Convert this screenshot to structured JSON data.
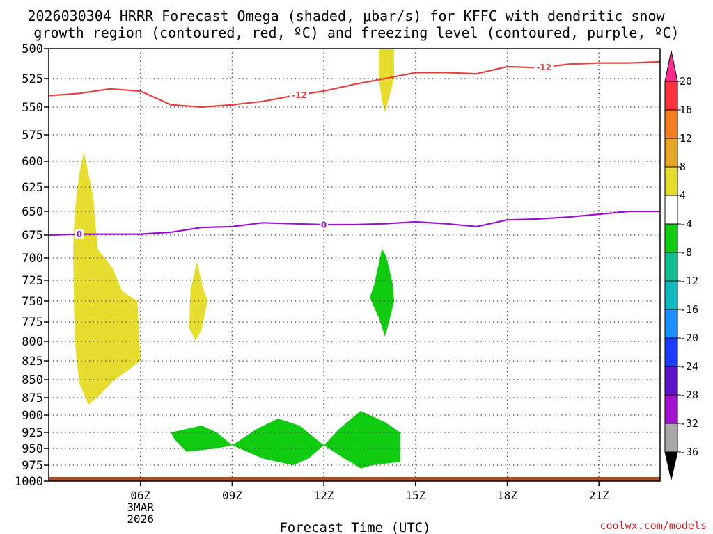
{
  "chart_data": {
    "type": "contour",
    "title_lines": [
      "2026030304 HRRR Forecast Omega (shaded, μbar/s) for KFFC with dendritic snow",
      "growth region (contoured, red, ºC) and freezing level (contoured, purple, ºC)"
    ],
    "xlabel": "Forecast Time (UTC)",
    "credit": "coolwx.com/models",
    "x_start_hour": 3,
    "x_end_hour": 23,
    "x_ticks": [
      {
        "hour": 6,
        "lines": [
          "06Z",
          "3MAR",
          "2026"
        ]
      },
      {
        "hour": 9,
        "lines": [
          "09Z"
        ]
      },
      {
        "hour": 12,
        "lines": [
          "12Z"
        ]
      },
      {
        "hour": 15,
        "lines": [
          "15Z"
        ]
      },
      {
        "hour": 18,
        "lines": [
          "18Z"
        ]
      },
      {
        "hour": 21,
        "lines": [
          "21Z"
        ]
      }
    ],
    "ylim": [
      500,
      1000
    ],
    "y_ticks": [
      {
        "p": 500,
        "y": 70
      },
      {
        "p": 525,
        "y": 113
      },
      {
        "p": 550,
        "y": 154
      },
      {
        "p": 575,
        "y": 194
      },
      {
        "p": 600,
        "y": 232
      },
      {
        "p": 625,
        "y": 269
      },
      {
        "p": 650,
        "y": 304
      },
      {
        "p": 675,
        "y": 338
      },
      {
        "p": 700,
        "y": 371
      },
      {
        "p": 725,
        "y": 403
      },
      {
        "p": 750,
        "y": 433
      },
      {
        "p": 775,
        "y": 463
      },
      {
        "p": 800,
        "y": 491
      },
      {
        "p": 825,
        "y": 519
      },
      {
        "p": 850,
        "y": 546
      },
      {
        "p": 875,
        "y": 572
      },
      {
        "p": 900,
        "y": 597
      },
      {
        "p": 925,
        "y": 622
      },
      {
        "p": 950,
        "y": 645
      },
      {
        "p": 975,
        "y": 669
      },
      {
        "p": 1000,
        "y": 692
      }
    ],
    "contours": [
      {
        "name": "-12",
        "color": "#e8413c",
        "points": [
          [
            3,
            540
          ],
          [
            4,
            538
          ],
          [
            5,
            534
          ],
          [
            6,
            536
          ],
          [
            7,
            548
          ],
          [
            8,
            550
          ],
          [
            9,
            548
          ],
          [
            10,
            545
          ],
          [
            11,
            540
          ],
          [
            12,
            536
          ],
          [
            13,
            530
          ],
          [
            14,
            525
          ],
          [
            15,
            520
          ],
          [
            16,
            520
          ],
          [
            17,
            521
          ],
          [
            18,
            515
          ],
          [
            19,
            516
          ],
          [
            20,
            513
          ],
          [
            21,
            512
          ],
          [
            22,
            512
          ],
          [
            23,
            511
          ]
        ],
        "labels": [
          [
            11.2,
            "-12"
          ],
          [
            19.2,
            "-12"
          ]
        ]
      },
      {
        "name": "0",
        "color": "#9b10d0",
        "points": [
          [
            3,
            675
          ],
          [
            4,
            674
          ],
          [
            5,
            674
          ],
          [
            6,
            674
          ],
          [
            7,
            672
          ],
          [
            8,
            667
          ],
          [
            9,
            666
          ],
          [
            10,
            662
          ],
          [
            11,
            663
          ],
          [
            12,
            664
          ],
          [
            13,
            664
          ],
          [
            14,
            663
          ],
          [
            15,
            661
          ],
          [
            16,
            663
          ],
          [
            17,
            666
          ],
          [
            18,
            659
          ],
          [
            19,
            658
          ],
          [
            20,
            656
          ],
          [
            21,
            653
          ],
          [
            22,
            650
          ],
          [
            23,
            650
          ]
        ],
        "labels": [
          [
            4.0,
            "0"
          ],
          [
            12.0,
            "0"
          ]
        ]
      }
    ],
    "omega_regions": [
      {
        "class": "4 to 8",
        "color": "#e6dd2e",
        "points": [
          [
            13.8,
            500
          ],
          [
            14.3,
            500
          ],
          [
            14.3,
            525
          ],
          [
            14.1,
            545
          ],
          [
            14.0,
            555
          ],
          [
            13.9,
            545
          ],
          [
            13.8,
            525
          ]
        ]
      },
      {
        "class": "4 to 8",
        "color": "#e6dd2e",
        "points": [
          [
            4.0,
            612
          ],
          [
            4.15,
            591
          ],
          [
            4.45,
            634
          ],
          [
            4.6,
            690
          ],
          [
            5.1,
            712
          ],
          [
            5.4,
            738
          ],
          [
            5.9,
            750
          ],
          [
            6.0,
            825
          ],
          [
            5.5,
            840
          ],
          [
            5.1,
            852
          ],
          [
            4.7,
            870
          ],
          [
            4.3,
            885
          ],
          [
            4.0,
            855
          ],
          [
            3.9,
            820
          ],
          [
            3.85,
            795
          ],
          [
            3.82,
            745
          ],
          [
            3.8,
            690
          ],
          [
            3.85,
            650
          ]
        ]
      },
      {
        "class": "4 to 8",
        "color": "#e6dd2e",
        "points": [
          [
            7.65,
            735
          ],
          [
            7.85,
            704
          ],
          [
            8.05,
            735
          ],
          [
            8.2,
            749
          ],
          [
            8.0,
            785
          ],
          [
            7.8,
            799
          ],
          [
            7.6,
            783
          ],
          [
            7.62,
            750
          ]
        ]
      },
      {
        "class": "-8 to -4",
        "color": "#10cc10",
        "points": [
          [
            13.9,
            690
          ],
          [
            14.05,
            699
          ],
          [
            14.25,
            729
          ],
          [
            14.3,
            750
          ],
          [
            14.1,
            780
          ],
          [
            14.0,
            794
          ],
          [
            13.8,
            770
          ],
          [
            13.5,
            746
          ],
          [
            13.65,
            730
          ]
        ]
      },
      {
        "class": "-8 to -4",
        "color": "#10cc10",
        "points": [
          [
            7.0,
            925
          ],
          [
            8.0,
            915
          ],
          [
            8.5,
            925
          ],
          [
            9.0,
            945
          ],
          [
            8.5,
            950
          ],
          [
            7.5,
            955
          ],
          [
            7.1,
            935
          ]
        ]
      },
      {
        "class": "-8 to -4",
        "color": "#10cc10",
        "points": [
          [
            9.0,
            945
          ],
          [
            9.8,
            920
          ],
          [
            10.5,
            905
          ],
          [
            11.2,
            915
          ],
          [
            12.0,
            945
          ],
          [
            11.5,
            965
          ],
          [
            11.0,
            975
          ],
          [
            10.0,
            965
          ]
        ]
      },
      {
        "class": "-8 to -4",
        "color": "#10cc10",
        "points": [
          [
            12.0,
            945
          ],
          [
            12.5,
            920
          ],
          [
            13.2,
            894
          ],
          [
            14.0,
            910
          ],
          [
            14.5,
            925
          ],
          [
            14.5,
            970
          ],
          [
            13.6,
            975
          ],
          [
            13.2,
            980
          ],
          [
            12.5,
            960
          ]
        ]
      }
    ],
    "ground_color": "#a0522d",
    "colorbar": {
      "top_color": "#ff2a8c",
      "bottom_color": "#000000",
      "segments": [
        {
          "color": "#ff3040"
        },
        {
          "color": "#f47f22"
        },
        {
          "color": "#e6a628"
        },
        {
          "color": "#e6dd2e"
        },
        {
          "color": "#ffffff"
        },
        {
          "color": "#10cc10"
        },
        {
          "color": "#10c090"
        },
        {
          "color": "#10b8c0"
        },
        {
          "color": "#1a90ff"
        },
        {
          "color": "#1a3cff"
        },
        {
          "color": "#5d14c8"
        },
        {
          "color": "#a210d0"
        },
        {
          "color": "#a8a8a8"
        }
      ],
      "ticks": [
        "20",
        "16",
        "12",
        "8",
        "4",
        "-4",
        "-8",
        "-12",
        "-16",
        "-20",
        "-24",
        "-28",
        "-32",
        "-36"
      ]
    }
  }
}
